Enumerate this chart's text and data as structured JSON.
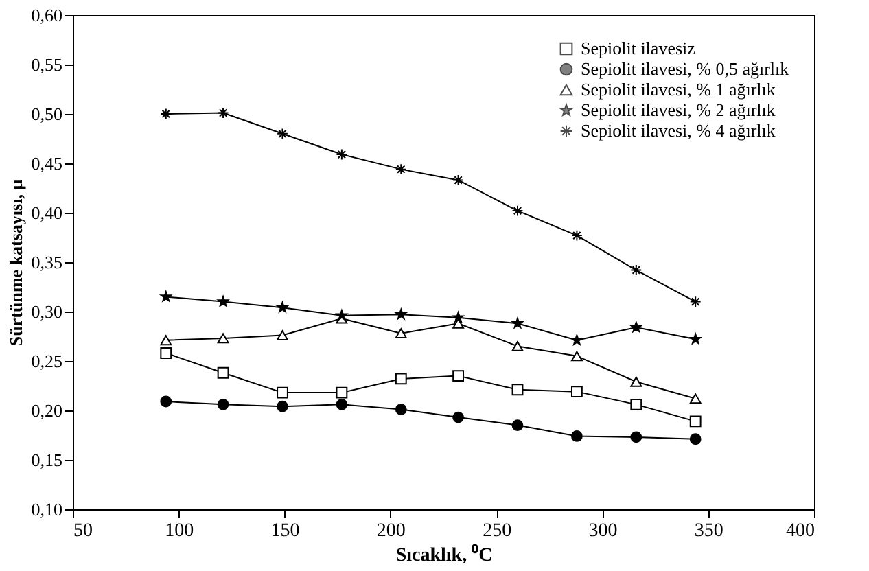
{
  "chart_data": {
    "type": "line",
    "xlabel": "Sıcaklık, ⁰C",
    "ylabel": "Sürtünme katsayısı, μ",
    "x": [
      94,
      121,
      149,
      177,
      205,
      232,
      260,
      288,
      316,
      344
    ],
    "series": [
      {
        "name": "Sepiolit ilavesiz",
        "color": "#000000",
        "marker": "square",
        "values": [
          0.258,
          0.238,
          0.218,
          0.218,
          0.232,
          0.235,
          0.221,
          0.219,
          0.206,
          0.189
        ]
      },
      {
        "name": "Sepiolit ilavesi, % 0,5 ağırlık",
        "color": "#000000",
        "marker": "circle",
        "values": [
          0.209,
          0.206,
          0.204,
          0.206,
          0.201,
          0.193,
          0.185,
          0.174,
          0.173,
          0.171
        ]
      },
      {
        "name": "Sepiolit ilavesi, % 1 ağırlık",
        "color": "#000000",
        "marker": "triangle",
        "values": [
          0.271,
          0.273,
          0.276,
          0.293,
          0.278,
          0.288,
          0.265,
          0.255,
          0.229,
          0.212
        ]
      },
      {
        "name": "Sepiolit ilavesi, % 2 ağırlık",
        "color": "#000000",
        "marker": "star",
        "values": [
          0.315,
          0.31,
          0.304,
          0.296,
          0.297,
          0.294,
          0.288,
          0.271,
          0.284,
          0.272
        ]
      },
      {
        "name": "Sepiolit ilavesi, % 4 ağırlık",
        "color": "#000000",
        "marker": "cross",
        "values": [
          0.5,
          0.501,
          0.48,
          0.459,
          0.444,
          0.433,
          0.402,
          0.377,
          0.342,
          0.31
        ]
      }
    ],
    "xlim": [
      50,
      400
    ],
    "xticks": [
      50,
      100,
      150,
      200,
      250,
      300,
      350,
      400
    ],
    "ylim": [
      0.1,
      0.6
    ],
    "yticks": [
      {
        "value": 0.1,
        "label": "0,10"
      },
      {
        "value": 0.15,
        "label": "0,15"
      },
      {
        "value": 0.2,
        "label": "0,20"
      },
      {
        "value": 0.25,
        "label": "0,25"
      },
      {
        "value": 0.3,
        "label": "0,30"
      },
      {
        "value": 0.35,
        "label": "0,35"
      },
      {
        "value": 0.4,
        "label": "0,40"
      },
      {
        "value": 0.45,
        "label": "0,45"
      },
      {
        "value": 0.5,
        "label": "0,50"
      },
      {
        "value": 0.55,
        "label": "0,55"
      },
      {
        "value": 0.6,
        "label": "0,60"
      }
    ],
    "grid": false,
    "legend": "top right",
    "line_style": "solid"
  }
}
